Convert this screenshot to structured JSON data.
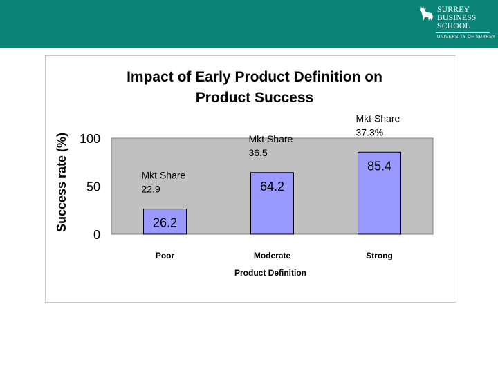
{
  "header": {
    "logo_lines": [
      "SURREY",
      "BUSINESS",
      "SCHOOL"
    ],
    "logo_subtitle": "UNIVERSITY OF SURREY",
    "bar_color": "#0b8478"
  },
  "chart_data": {
    "type": "bar",
    "title": [
      "Impact of Early Product Definition on",
      "Product Success"
    ],
    "xlabel": "Product Definition",
    "ylabel": "Success rate (%)",
    "ylim": [
      0,
      100
    ],
    "yticks": [
      "0",
      "50",
      "100"
    ],
    "categories": [
      "Poor",
      "Moderate",
      "Strong"
    ],
    "values": [
      26.2,
      64.2,
      85.4
    ],
    "value_labels": [
      "26.2",
      "64.2",
      "85.4"
    ],
    "annotations": [
      [
        "Mkt Share",
        "22.9"
      ],
      [
        "Mkt Share",
        "36.5"
      ],
      [
        "Mkt Share",
        "37.3%"
      ]
    ],
    "bar_color": "#9999ff",
    "plot_bg": "#c0c0c0"
  }
}
